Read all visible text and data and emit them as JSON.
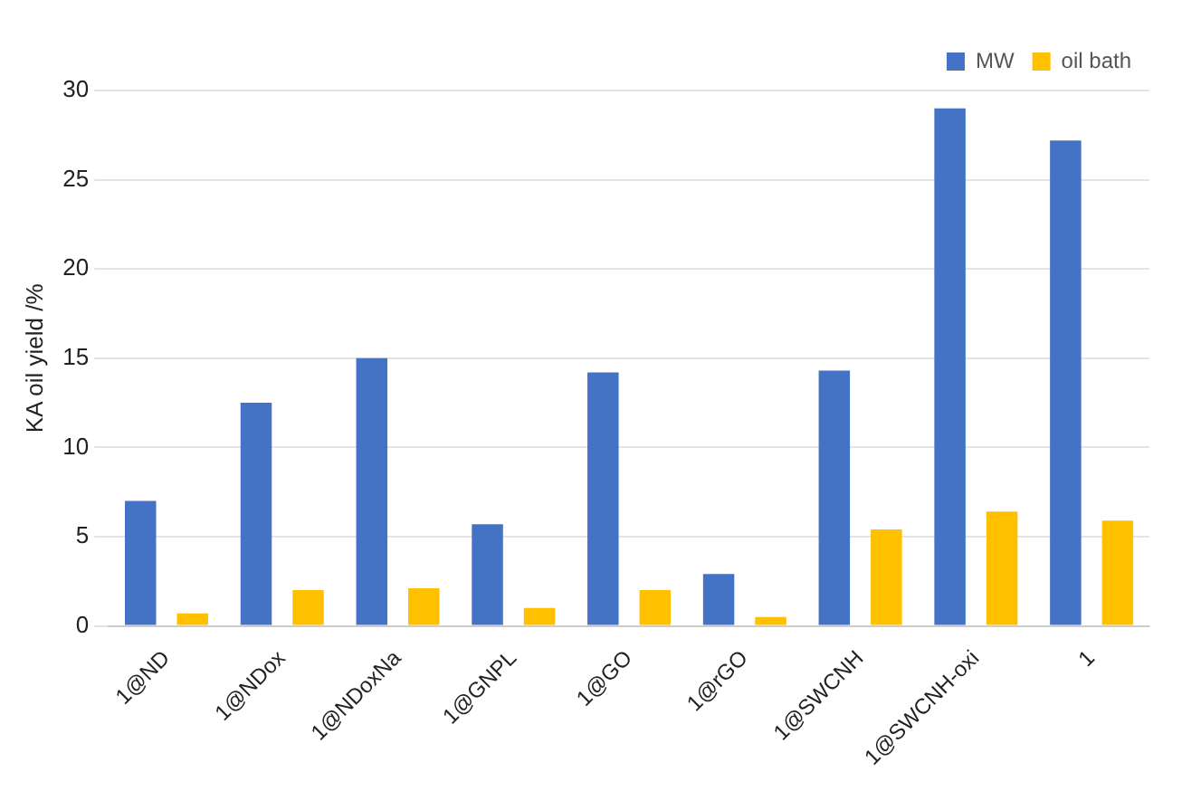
{
  "chart_data": {
    "type": "bar",
    "ylabel": "KA oil yield /%",
    "categories": [
      "1@ND",
      "1@NDox",
      "1@NDoxNa",
      "1@GNPL",
      "1@GO",
      "1@rGO",
      "1@SWCNH",
      "1@SWCNH-oxi",
      "1"
    ],
    "series": [
      {
        "name": "MW",
        "color": "#4472c4",
        "values": [
          7.0,
          12.5,
          15.0,
          5.7,
          14.2,
          2.9,
          14.3,
          29.0,
          27.2
        ]
      },
      {
        "name": "oil bath",
        "color": "#ffc000",
        "values": [
          0.7,
          2.0,
          2.1,
          1.0,
          2.0,
          0.5,
          5.4,
          6.4,
          5.9
        ]
      }
    ],
    "ylim": [
      0,
      30
    ],
    "yticks": [
      0,
      5,
      10,
      15,
      20,
      25,
      30
    ],
    "grid": "y",
    "legend": "top right"
  }
}
